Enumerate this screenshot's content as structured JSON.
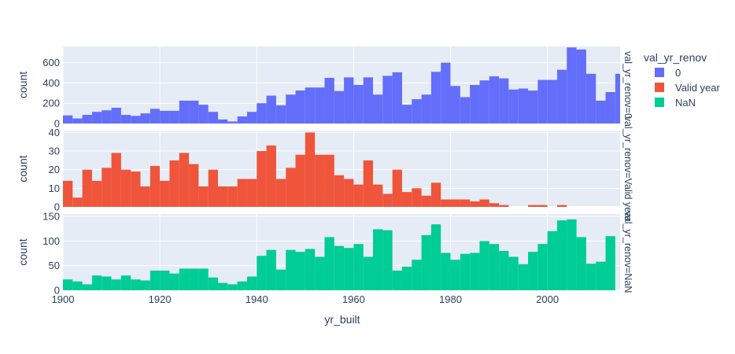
{
  "chart_data": {
    "type": "bar",
    "subtype": "faceted histogram",
    "xlabel": "yr_built",
    "xlim": [
      1900,
      2015
    ],
    "bin_width": 2,
    "bin_starts": [
      1900,
      1902,
      1904,
      1906,
      1908,
      1910,
      1912,
      1914,
      1916,
      1918,
      1920,
      1922,
      1924,
      1926,
      1928,
      1930,
      1932,
      1934,
      1936,
      1938,
      1940,
      1942,
      1944,
      1946,
      1948,
      1950,
      1952,
      1954,
      1956,
      1958,
      1960,
      1962,
      1964,
      1966,
      1968,
      1970,
      1972,
      1974,
      1976,
      1978,
      1980,
      1982,
      1984,
      1986,
      1988,
      1990,
      1992,
      1994,
      1996,
      1998,
      2000,
      2002,
      2004,
      2006,
      2008,
      2010,
      2012,
      2014
    ],
    "x_ticks": [
      1900,
      1920,
      1940,
      1960,
      1980,
      2000
    ],
    "x_tick_labels": [
      "1900",
      "1920",
      "1940",
      "1960",
      "1980",
      "2000"
    ],
    "legend": {
      "title": "val_yr_renov",
      "placement": "right"
    },
    "grid": true,
    "facets": [
      {
        "name": "0",
        "facet_label": "val_yr_renov=0",
        "ylabel": "count",
        "color": "#636efa",
        "ylim": [
          0,
          760
        ],
        "y_ticks": [
          0,
          200,
          400,
          600
        ],
        "y_tick_labels": [
          "0",
          "200",
          "400",
          "600"
        ],
        "values": [
          80,
          50,
          85,
          115,
          130,
          155,
          85,
          75,
          100,
          145,
          125,
          125,
          225,
          225,
          185,
          115,
          40,
          20,
          70,
          115,
          200,
          275,
          180,
          285,
          325,
          355,
          355,
          450,
          320,
          455,
          380,
          455,
          285,
          470,
          505,
          185,
          240,
          285,
          510,
          600,
          370,
          260,
          380,
          425,
          465,
          445,
          335,
          345,
          325,
          430,
          430,
          530,
          750,
          730,
          490,
          225,
          310,
          490
        ]
      },
      {
        "name": "Valid year",
        "facet_label": "val_yr_renov=Valid year",
        "ylabel": "count",
        "color": "#ef553b",
        "ylim": [
          0,
          41
        ],
        "y_ticks": [
          0,
          10,
          20,
          30,
          40
        ],
        "y_tick_labels": [
          "0",
          "10",
          "20",
          "30",
          "40"
        ],
        "values": [
          14,
          5,
          20,
          14,
          21,
          29,
          20,
          19,
          11,
          22,
          14,
          25,
          29,
          23,
          11,
          20,
          11,
          11,
          15,
          15,
          30,
          33,
          15,
          21,
          28,
          40,
          28,
          28,
          17,
          15,
          12,
          25,
          12,
          7,
          20,
          8,
          10,
          6,
          13,
          4,
          4,
          4,
          3,
          4,
          2,
          1,
          0,
          0,
          1,
          1,
          0,
          1,
          0,
          0,
          0,
          0,
          0,
          0
        ]
      },
      {
        "name": "NaN",
        "facet_label": "val_yr_renov=NaN",
        "ylabel": "count",
        "color": "#00cc96",
        "ylim": [
          0,
          155
        ],
        "y_ticks": [
          0,
          50,
          100,
          150
        ],
        "y_tick_labels": [
          "0",
          "50",
          "100",
          "150"
        ],
        "values": [
          22,
          18,
          12,
          30,
          28,
          22,
          30,
          22,
          20,
          40,
          40,
          34,
          44,
          44,
          44,
          26,
          15,
          12,
          18,
          28,
          70,
          82,
          42,
          82,
          78,
          84,
          68,
          108,
          90,
          86,
          94,
          68,
          124,
          122,
          40,
          48,
          62,
          112,
          134,
          76,
          62,
          74,
          76,
          100,
          94,
          80,
          68,
          53,
          78,
          94,
          120,
          142,
          144,
          108,
          54,
          58,
          110,
          0
        ]
      }
    ]
  }
}
